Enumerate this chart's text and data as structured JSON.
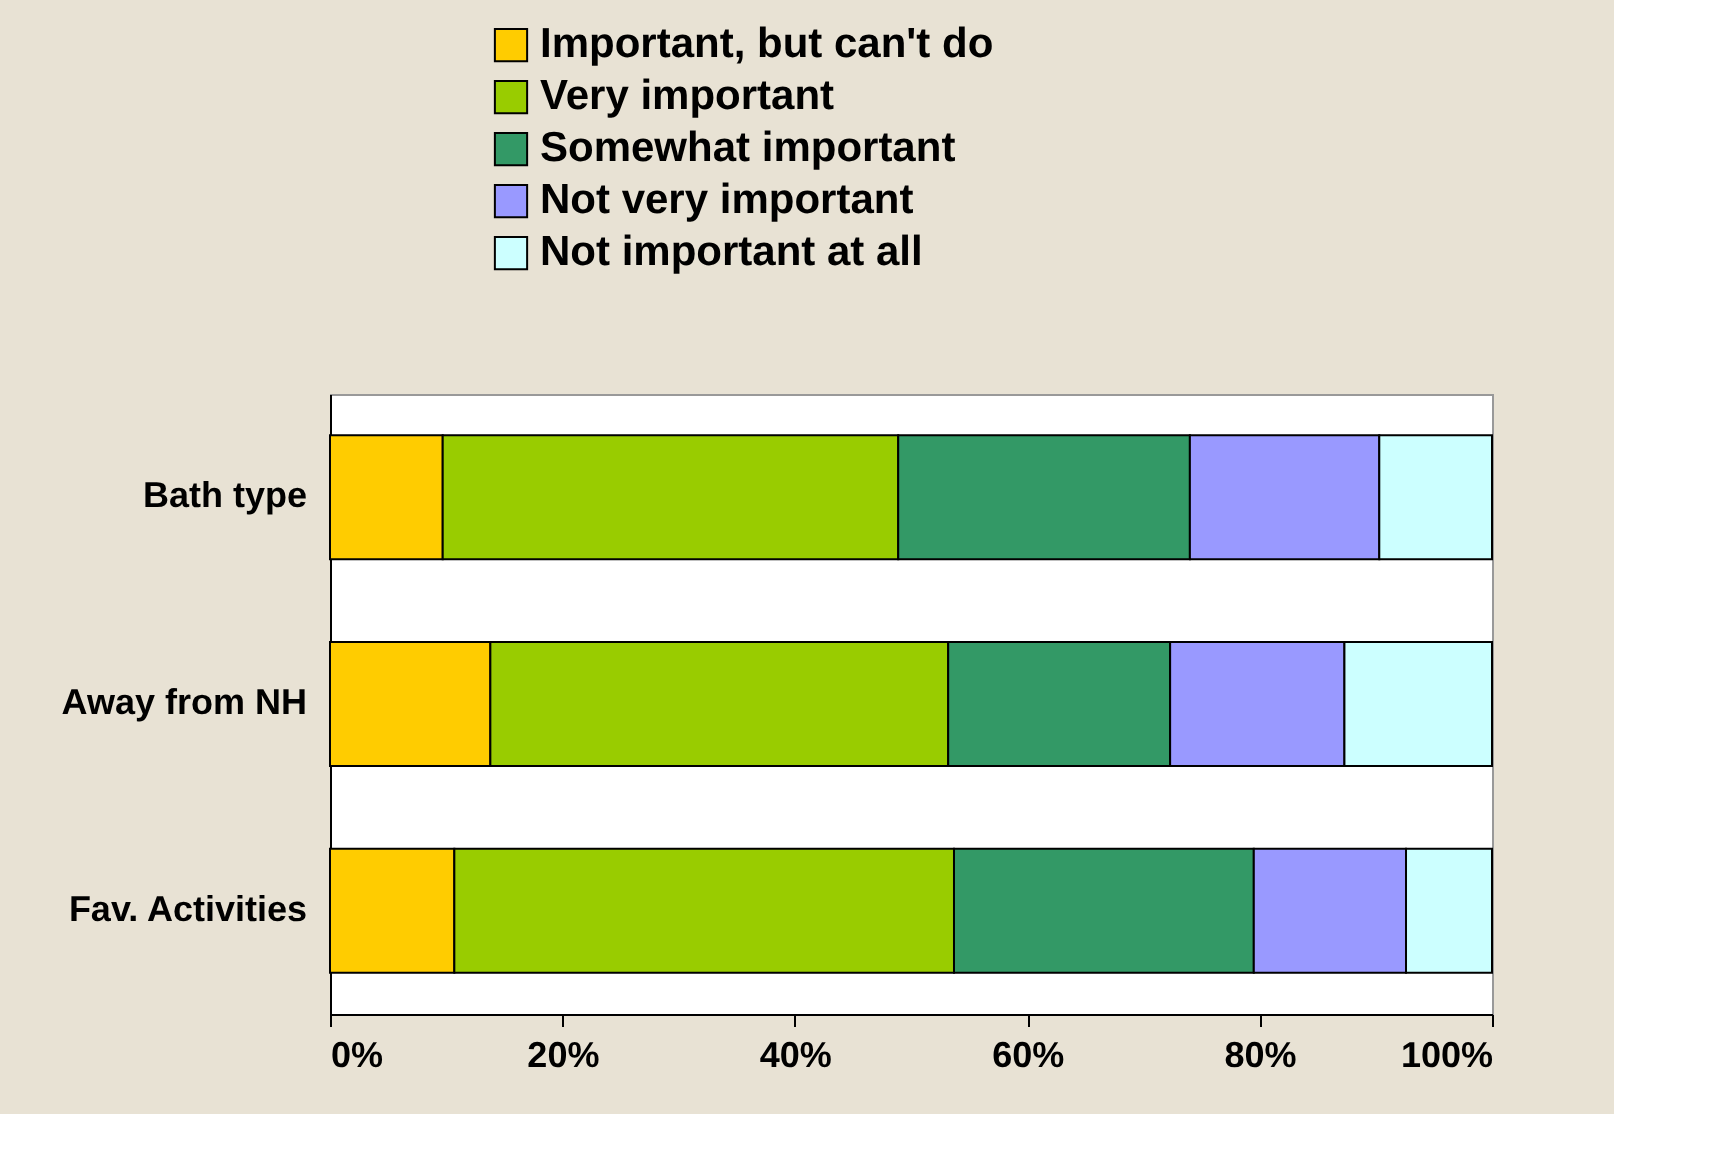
{
  "chart_data": {
    "type": "bar",
    "orientation": "horizontal",
    "stacked": true,
    "categories": [
      "Bath type",
      "Away from NH",
      "Fav. Activities"
    ],
    "series": [
      {
        "name": "Important, but can't do",
        "color": "#ffcc00",
        "values": [
          9.7,
          13.8,
          10.7
        ]
      },
      {
        "name": "Very important",
        "color": "#99cc00",
        "values": [
          39.2,
          39.4,
          43.0
        ]
      },
      {
        "name": "Somewhat important",
        "color": "#339966",
        "values": [
          25.1,
          19.1,
          25.8
        ]
      },
      {
        "name": "Not very important",
        "color": "#9999ff",
        "values": [
          16.3,
          15.0,
          13.1
        ]
      },
      {
        "name": "Not important at all",
        "color": "#ccffff",
        "values": [
          9.7,
          12.7,
          7.4
        ]
      }
    ],
    "xlim": [
      0,
      100
    ],
    "xticks": [
      {
        "value": 0,
        "label": "0%"
      },
      {
        "value": 20,
        "label": "20%"
      },
      {
        "value": 40,
        "label": "40%"
      },
      {
        "value": 60,
        "label": "60%"
      },
      {
        "value": 80,
        "label": "80%"
      },
      {
        "value": 100,
        "label": "100%"
      }
    ],
    "grid": false,
    "legend": "top"
  }
}
